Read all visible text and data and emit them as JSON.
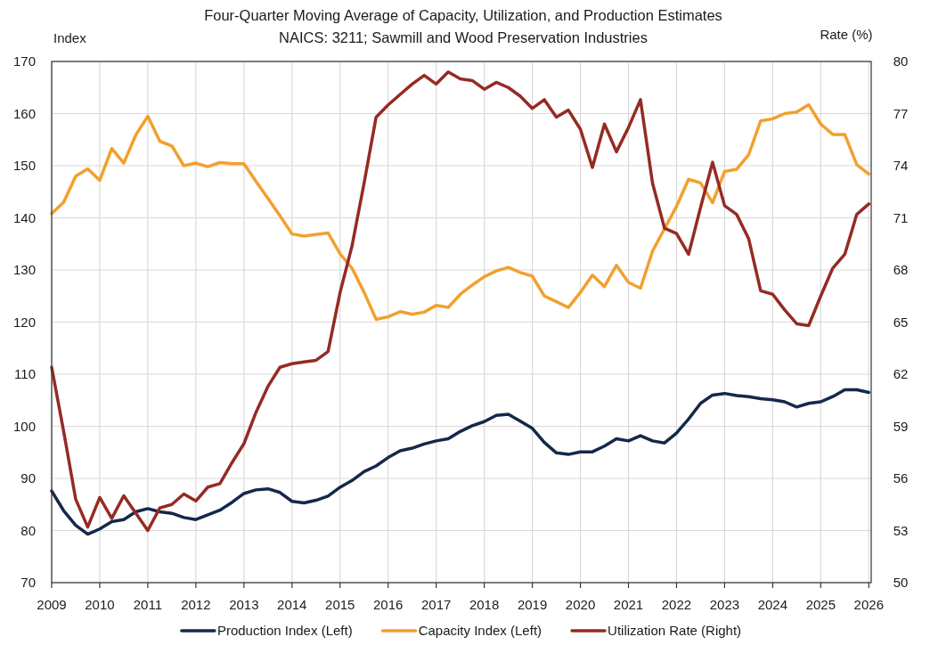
{
  "chart_data": {
    "type": "line",
    "title": "Four-Quarter Moving Average of Capacity, Utilization, and Production Estimates",
    "subtitle": "NAICS: 3211; Sawmill and Wood Preservation Industries",
    "ylabel": "Index",
    "y2label": "Rate (%)",
    "x": [
      2009,
      2009.25,
      2009.5,
      2009.75,
      2010,
      2010.25,
      2010.5,
      2010.75,
      2011,
      2011.25,
      2011.5,
      2011.75,
      2012,
      2012.25,
      2012.5,
      2012.75,
      2013,
      2013.25,
      2013.5,
      2013.75,
      2014,
      2014.25,
      2014.5,
      2014.75,
      2015,
      2015.25,
      2015.5,
      2015.75,
      2016,
      2016.25,
      2016.5,
      2016.75,
      2017,
      2017.25,
      2017.5,
      2017.75,
      2018,
      2018.25,
      2018.5,
      2018.75,
      2019,
      2019.25,
      2019.5,
      2019.75,
      2020,
      2020.25,
      2020.5,
      2020.75,
      2021,
      2021.25,
      2021.5,
      2021.75,
      2022,
      2022.25,
      2022.5,
      2022.75,
      2023,
      2023.25,
      2023.5,
      2023.75,
      2024,
      2024.25,
      2024.5,
      2024.75,
      2025,
      2025.25,
      2025.5,
      2025.75,
      2026
    ],
    "xlim": [
      2009,
      2026.05
    ],
    "xticks": [
      2009,
      2010,
      2011,
      2012,
      2013,
      2014,
      2015,
      2016,
      2017,
      2018,
      2019,
      2020,
      2021,
      2022,
      2023,
      2024,
      2025,
      2026
    ],
    "ylim": [
      70,
      170
    ],
    "yticks": [
      70,
      80,
      90,
      100,
      110,
      120,
      130,
      140,
      150,
      160,
      170
    ],
    "y2lim": [
      50,
      80
    ],
    "y2ticks": [
      50,
      53,
      56,
      59,
      62,
      65,
      68,
      71,
      74,
      77,
      80
    ],
    "grid": true,
    "legend": "bottom",
    "series": [
      {
        "name": "Production Index (Left)",
        "color": "#14284b",
        "values": [
          87.6,
          83.8,
          81.0,
          79.3,
          80.3,
          81.7,
          82.1,
          83.6,
          84.2,
          83.6,
          83.3,
          82.5,
          82.1,
          83.0,
          83.9,
          85.4,
          87.1,
          87.8,
          88.0,
          87.3,
          85.6,
          85.3,
          85.8,
          86.6,
          88.3,
          89.6,
          91.3,
          92.4,
          94.0,
          95.3,
          95.8,
          96.6,
          97.2,
          97.6,
          99.0,
          100.1,
          100.9,
          102.1,
          102.3,
          101.0,
          99.6,
          96.9,
          94.9,
          94.6,
          95.1,
          95.1,
          96.2,
          97.6,
          97.2,
          98.2,
          97.2,
          96.8,
          98.7,
          101.4,
          104.4,
          106.0,
          106.3,
          105.9,
          105.7,
          105.3,
          105.1,
          104.7,
          103.7,
          104.4,
          104.7,
          105.7,
          107.0,
          107.0,
          106.5
        ]
      },
      {
        "name": "Capacity Index (Left)",
        "color": "#f2a02e",
        "values": [
          140.8,
          143.0,
          148.0,
          149.4,
          147.2,
          153.3,
          150.5,
          155.9,
          159.5,
          154.7,
          153.8,
          150.0,
          150.5,
          149.8,
          150.6,
          150.4,
          150.4,
          147.0,
          143.7,
          140.4,
          136.9,
          136.5,
          136.8,
          137.1,
          133.1,
          130.3,
          125.7,
          120.5,
          121.0,
          122.0,
          121.5,
          121.9,
          123.2,
          122.8,
          125.3,
          127.1,
          128.7,
          129.8,
          130.5,
          129.5,
          128.8,
          125.0,
          123.9,
          122.8,
          125.7,
          129.0,
          126.8,
          130.9,
          127.6,
          126.5,
          133.6,
          137.9,
          142.2,
          147.4,
          146.7,
          142.9,
          148.9,
          149.3,
          152.1,
          158.6,
          159.0,
          160.0,
          160.3,
          161.7,
          158.0,
          156.0,
          156.0,
          150.2,
          148.4
        ]
      },
      {
        "name": "Utilization Rate (Right)",
        "color": "#952b23",
        "axis": "y2",
        "values": [
          62.4,
          58.7,
          54.8,
          53.2,
          54.9,
          53.7,
          55.0,
          54.0,
          53.0,
          54.3,
          54.5,
          55.1,
          54.7,
          55.5,
          55.7,
          56.9,
          58.0,
          59.8,
          61.3,
          62.4,
          62.6,
          62.7,
          62.8,
          63.3,
          66.7,
          69.4,
          73.0,
          76.8,
          77.5,
          78.1,
          78.7,
          79.2,
          78.7,
          79.4,
          79.0,
          78.9,
          78.4,
          78.8,
          78.5,
          78.0,
          77.3,
          77.8,
          76.8,
          77.2,
          76.1,
          73.9,
          76.4,
          74.8,
          76.2,
          77.8,
          73.0,
          70.4,
          70.1,
          68.9,
          71.6,
          74.2,
          71.7,
          71.2,
          69.8,
          66.8,
          66.6,
          65.7,
          64.9,
          64.8,
          66.5,
          68.1,
          68.9,
          71.2,
          71.8
        ]
      }
    ]
  }
}
